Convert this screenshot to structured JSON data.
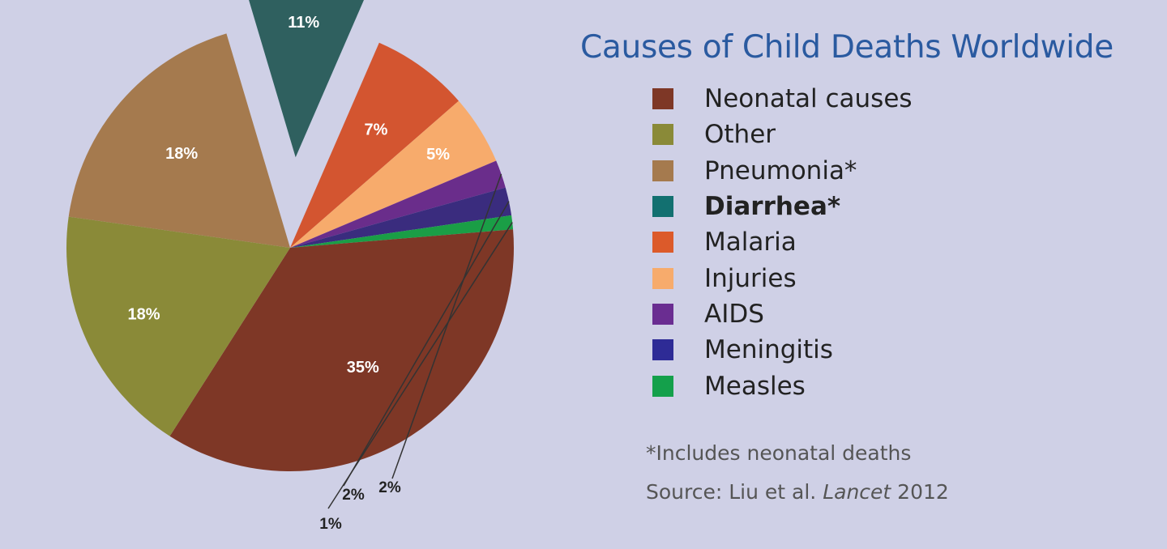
{
  "chart_data": {
    "type": "pie",
    "title": "Causes of Child Deaths Worldwide",
    "slices": [
      {
        "name": "Neonatal causes",
        "value": 35,
        "label": "35%",
        "color": "#7e3726",
        "bold": false,
        "exploded": false
      },
      {
        "name": "Other",
        "value": 18,
        "label": "18%",
        "color": "#8a8a38",
        "bold": false,
        "exploded": false
      },
      {
        "name": "Pneumonia*",
        "value": 18,
        "label": "18%",
        "color": "#a57a4e",
        "bold": false,
        "exploded": false
      },
      {
        "name": "Diarrhea*",
        "value": 11,
        "label": "11%",
        "color": "#2f605f",
        "bold": true,
        "exploded": true
      },
      {
        "name": "Malaria",
        "value": 7,
        "label": "7%",
        "color": "#d35530",
        "bold": false,
        "exploded": false
      },
      {
        "name": "Injuries",
        "value": 5,
        "label": "5%",
        "color": "#f7ab6c",
        "bold": false,
        "exploded": false
      },
      {
        "name": "AIDS",
        "value": 2,
        "label": "2%",
        "color": "#6a2d8b",
        "bold": false,
        "exploded": false
      },
      {
        "name": "Meningitis",
        "value": 2,
        "label": "2%",
        "color": "#3a2c7e",
        "bold": false,
        "exploded": false
      },
      {
        "name": "Measles",
        "value": 1,
        "label": "1%",
        "color": "#1a9e46",
        "bold": false,
        "exploded": false
      }
    ],
    "legend_placement": "right",
    "legend_colors": [
      "#7e3726",
      "#8a8a38",
      "#a57a4e",
      "#127070",
      "#dc5a2a",
      "#f7ab6c",
      "#6a2d91",
      "#2e2b96",
      "#14a04b"
    ]
  },
  "footnote": "*Includes neonatal deaths",
  "source": {
    "prefix": "Source: Liu et al. ",
    "journal": "Lancet",
    "year": " 2012"
  }
}
